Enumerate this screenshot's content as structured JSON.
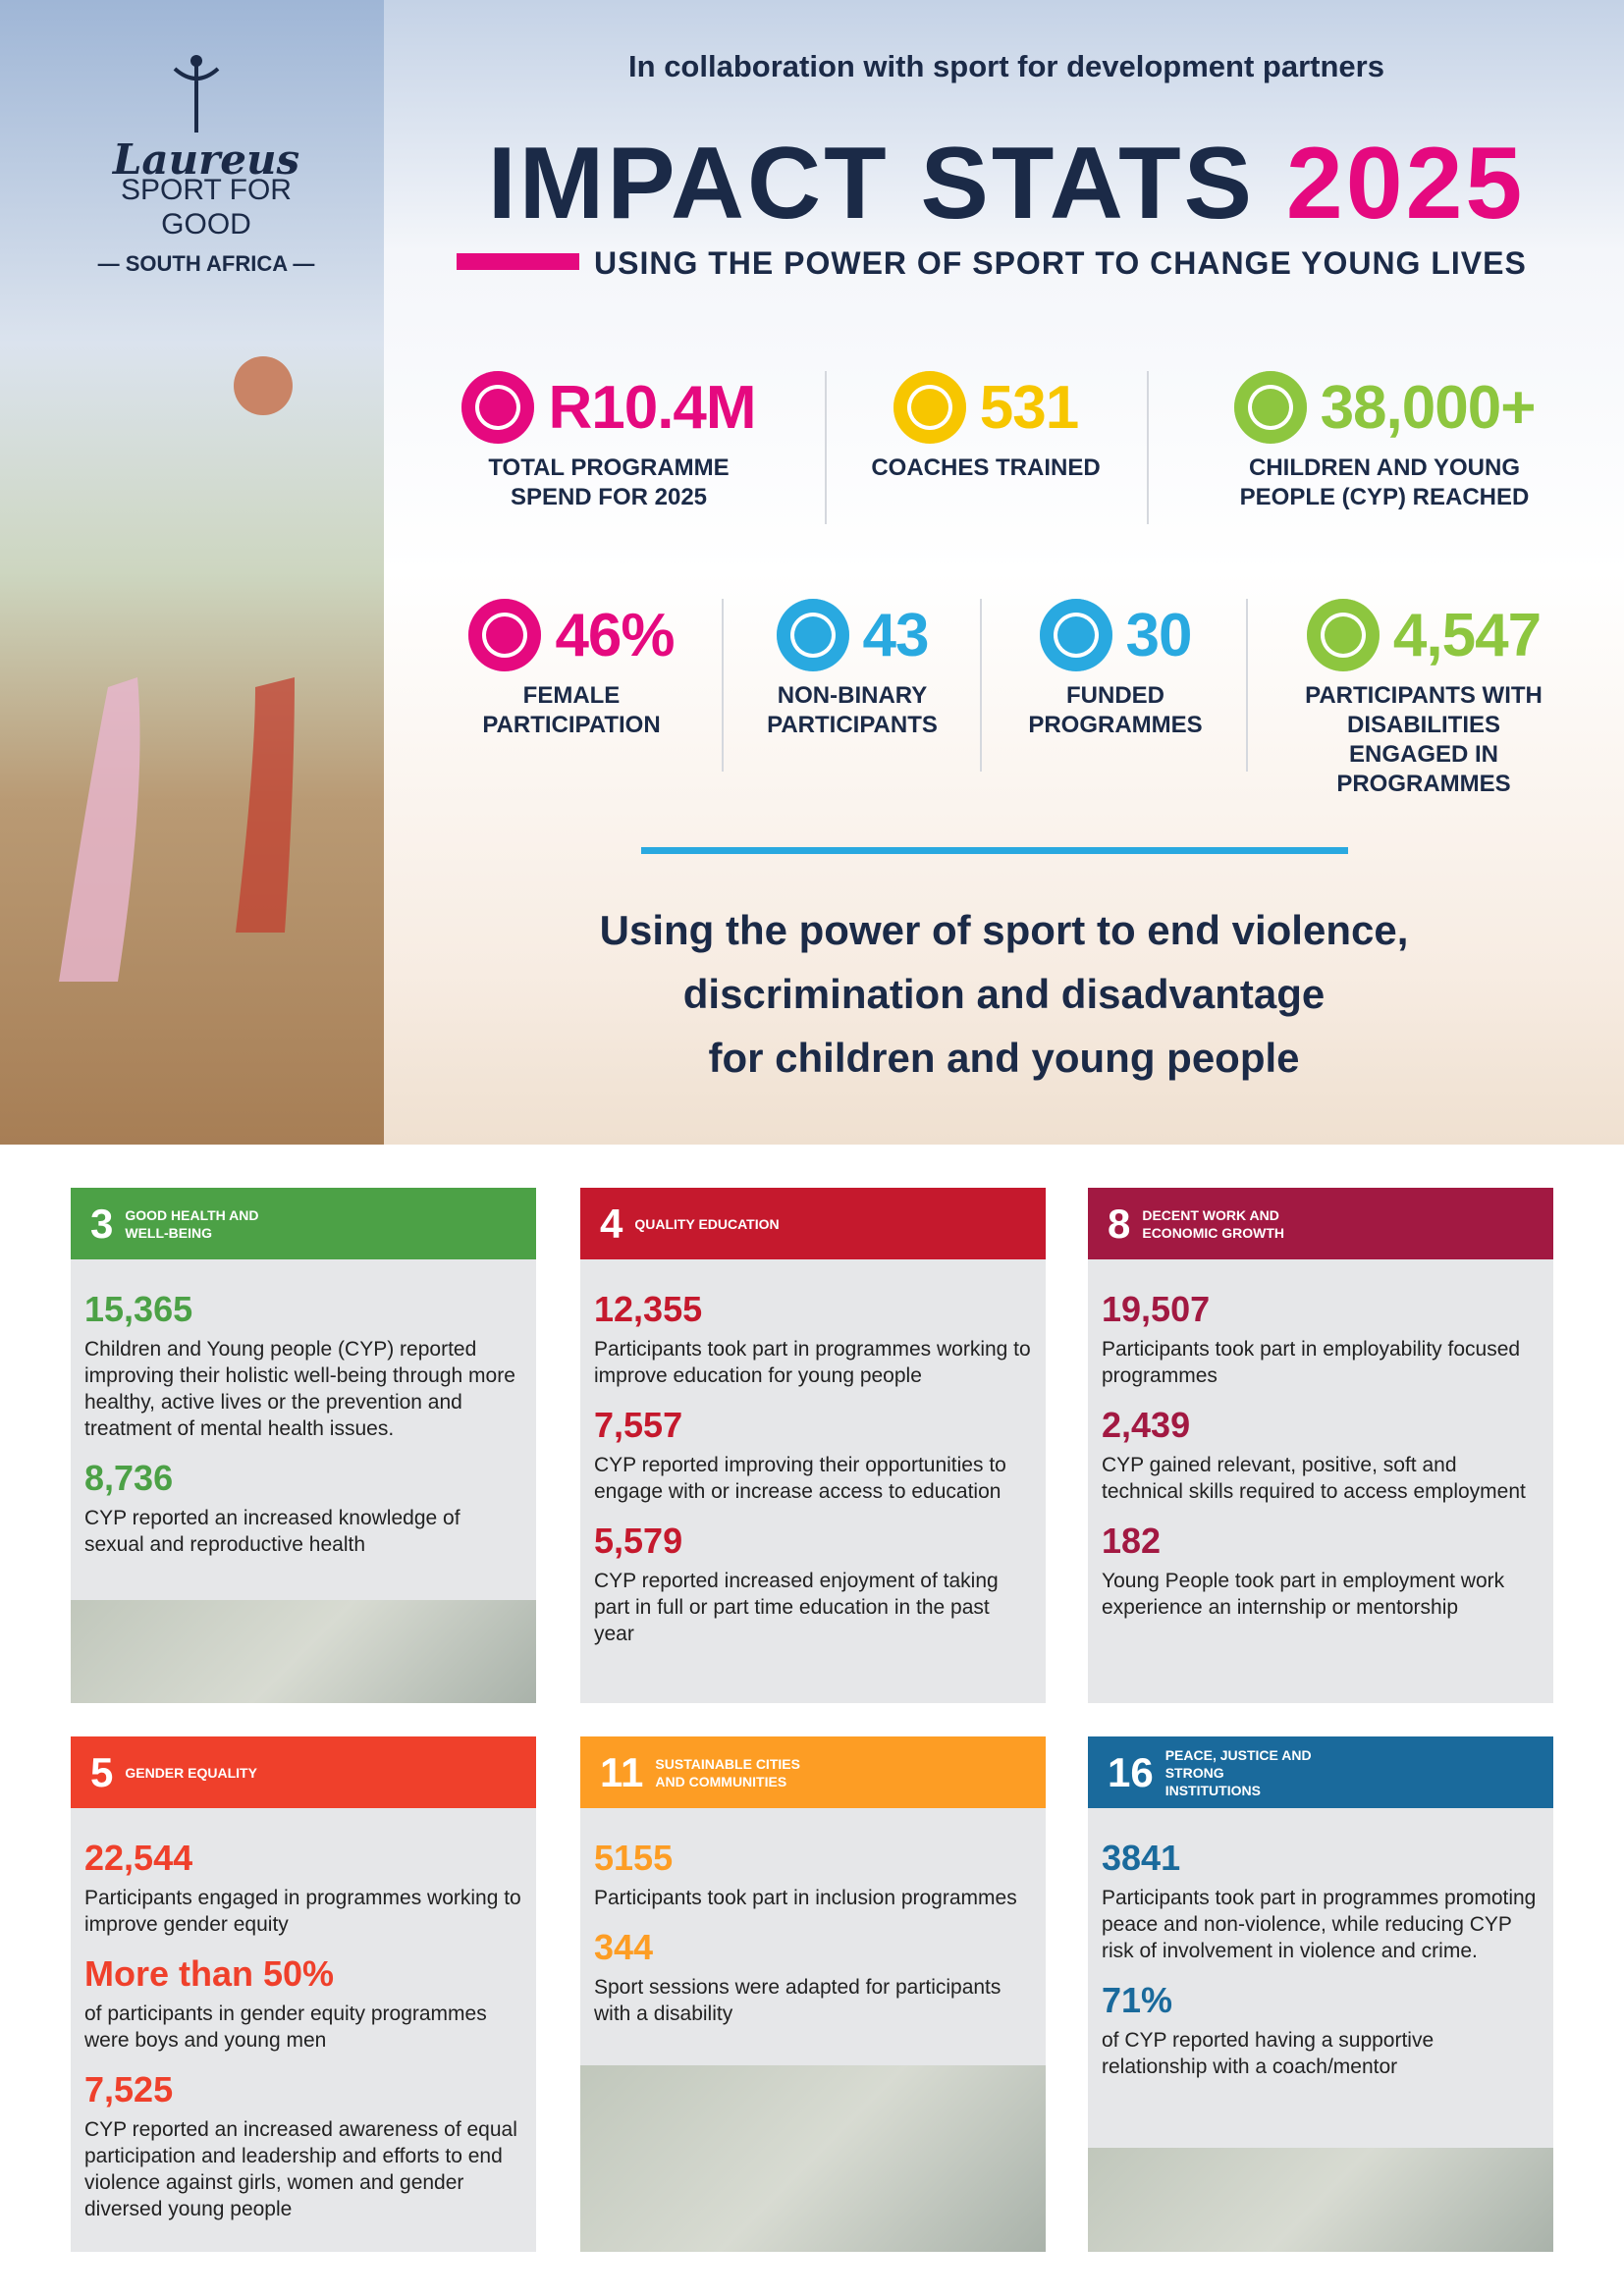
{
  "logo": {
    "brand": "Laureus",
    "line1": "SPORT FOR",
    "line2": "GOOD",
    "region": "— SOUTH AFRICA —"
  },
  "header": {
    "collaboration": "In collaboration with sport for development partners",
    "title": "IMPACT STATS",
    "year": "2025",
    "subtitle": "USING THE POWER OF SPORT TO CHANGE YOUNG LIVES"
  },
  "stats": [
    {
      "value": "R10.4M",
      "label": "TOTAL PROGRAMME SPEND FOR 2025",
      "color": "#e5097f"
    },
    {
      "value": "531",
      "label": "COACHES TRAINED",
      "color": "#f7c600"
    },
    {
      "value": "38,000+",
      "label": "CHILDREN AND YOUNG PEOPLE (CYP) REACHED",
      "color": "#8dc63f"
    },
    {
      "value": "46%",
      "label": "FEMALE PARTICIPATION",
      "color": "#e5097f"
    },
    {
      "value": "43",
      "label": "NON-BINARY PARTICIPANTS",
      "color": "#29a9e0"
    },
    {
      "value": "30",
      "label": "FUNDED PROGRAMMES",
      "color": "#29a9e0"
    },
    {
      "value": "4,547",
      "label": "PARTICIPANTS WITH DISABILITIES ENGAGED IN PROGRAMMES",
      "color": "#8dc63f"
    }
  ],
  "tagline": [
    "Using the power of sport to end violence,",
    "discrimination and disadvantage",
    "for children and young people"
  ],
  "goals": [
    {
      "number": "3",
      "name": "GOOD HEALTH AND WELL-BEING",
      "color": "#4ca146",
      "items": [
        {
          "value": "15,365",
          "text": "Children and Young people (CYP) reported improving their holistic well-being through more healthy, active lives or the prevention and treatment of mental health issues."
        },
        {
          "value": "8,736",
          "text": "CYP reported an increased knowledge of sexual and reproductive health"
        }
      ]
    },
    {
      "number": "4",
      "name": "QUALITY EDUCATION",
      "color": "#c5192d",
      "items": [
        {
          "value": "12,355",
          "text": "Participants took part in programmes working to improve education for young people"
        },
        {
          "value": "7,557",
          "text": "CYP reported improving their opportunities to engage with or increase access to education"
        },
        {
          "value": "5,579",
          "text": "CYP reported increased enjoyment of taking part in full or part time education in the past year"
        }
      ]
    },
    {
      "number": "8",
      "name": "DECENT WORK AND ECONOMIC GROWTH",
      "color": "#a21942",
      "items": [
        {
          "value": "19,507",
          "text": "Participants took part in employability focused programmes"
        },
        {
          "value": "2,439",
          "text": "CYP gained relevant, positive, soft and technical skills required to access employment"
        },
        {
          "value": "182",
          "text": "Young People took part in employment work experience an internship or mentorship"
        }
      ]
    },
    {
      "number": "5",
      "name": "GENDER EQUALITY",
      "color": "#ef402b",
      "items": [
        {
          "value": "22,544",
          "text": "Participants engaged in programmes working to improve gender equity"
        },
        {
          "value": "More than 50%",
          "text": "of participants in gender equity programmes were boys and young men"
        },
        {
          "value": "7,525",
          "text": "CYP reported an increased awareness of equal participation and leadership and efforts to end violence against girls, women and gender diversed young people"
        }
      ]
    },
    {
      "number": "11",
      "name": "SUSTAINABLE CITIES AND COMMUNITIES",
      "color": "#fd9d24",
      "items": [
        {
          "value": "5155",
          "text": "Participants took part in inclusion programmes"
        },
        {
          "value": "344",
          "text": "Sport sessions were adapted for participants with a disability"
        }
      ]
    },
    {
      "number": "16",
      "name": "PEACE, JUSTICE AND STRONG INSTITUTIONS",
      "color": "#1a6a9c",
      "items": [
        {
          "value": "3841",
          "text": "Participants took part in programmes promoting peace and non-violence, while reducing CYP risk of involvement in violence and crime."
        },
        {
          "value": "71%",
          "text": "of CYP reported having a supportive relationship with a coach/mentor"
        }
      ]
    }
  ]
}
